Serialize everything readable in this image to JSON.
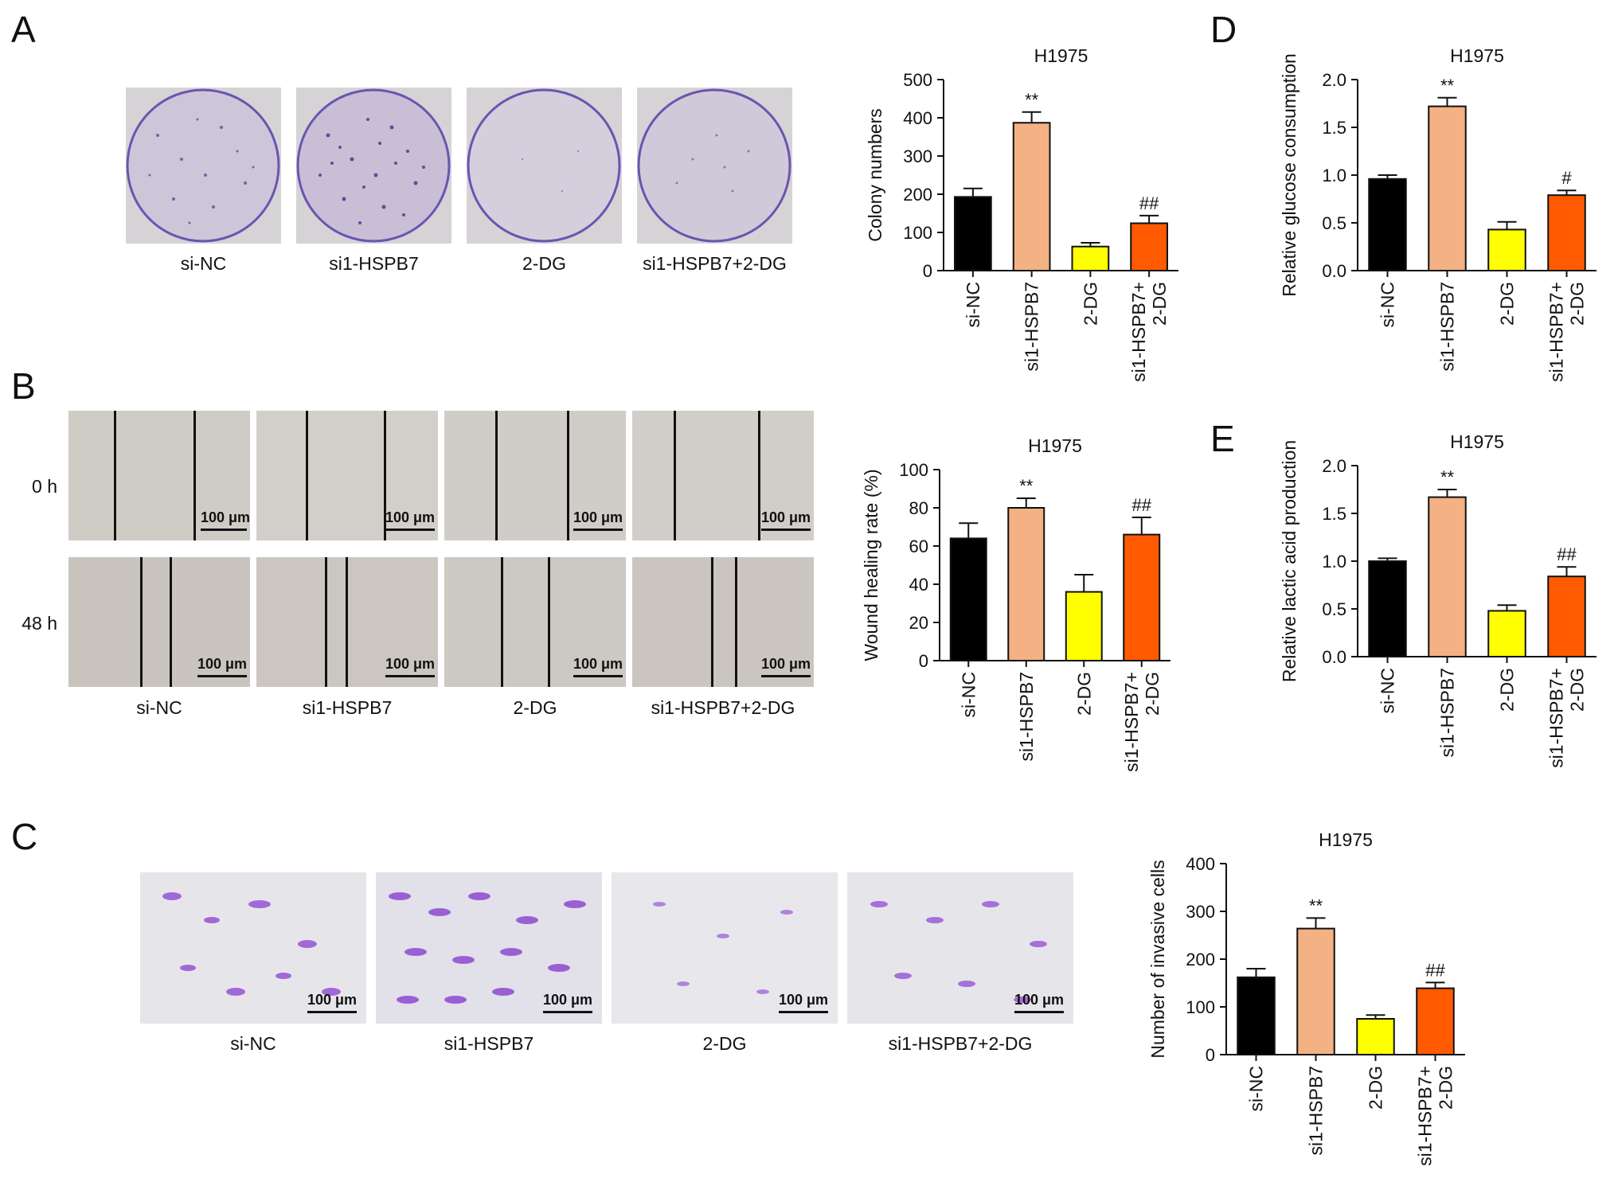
{
  "panels": {
    "A": {
      "letter": "A",
      "captions": [
        "si-NC",
        "si1-HSPB7",
        "2-DG",
        "si1-HSPB7+2-DG"
      ]
    },
    "B": {
      "letter": "B",
      "row_labels": [
        "0 h",
        "48 h"
      ],
      "scale_label": "100 μm",
      "captions": [
        "si-NC",
        "si1-HSPB7",
        "2-DG",
        "si1-HSPB7+2-DG"
      ]
    },
    "C": {
      "letter": "C",
      "scale_label": "100 μm",
      "captions": [
        "si-NC",
        "si1-HSPB7",
        "2-DG",
        "si1-HSPB7+2-DG"
      ]
    },
    "D": {
      "letter": "D"
    },
    "E": {
      "letter": "E"
    }
  },
  "colors": {
    "si-NC": "#000000",
    "si1-HSPB7": "#f4b183",
    "2-DG": "#ffff00",
    "si1-HSPB7+2-DG": "#ff5a00"
  },
  "chart_data": [
    {
      "id": "A",
      "type": "bar",
      "title": "H1975",
      "ylabel": "Colony numbers",
      "xlabel": "",
      "categories": [
        "si-NC",
        "si1-HSPB7",
        "2-DG",
        "si1-HSPB7+\n2-DG"
      ],
      "values": [
        193,
        387,
        63,
        124
      ],
      "errors": [
        22,
        28,
        10,
        20
      ],
      "annotations": [
        "",
        "**",
        "",
        "##"
      ],
      "ylim": [
        0,
        500
      ],
      "yticks": [
        0,
        100,
        200,
        300,
        400,
        500
      ],
      "ytick_labels": [
        "0",
        "100",
        "200",
        "300",
        "400",
        "500"
      ]
    },
    {
      "id": "D",
      "type": "bar",
      "title": "H1975",
      "ylabel": "Relative glucose consumption",
      "xlabel": "",
      "categories": [
        "si-NC",
        "si1-HSPB7",
        "2-DG",
        "si1-HSPB7+\n2-DG"
      ],
      "values": [
        0.96,
        1.72,
        0.43,
        0.79
      ],
      "errors": [
        0.04,
        0.09,
        0.08,
        0.05
      ],
      "annotations": [
        "",
        "**",
        "",
        "#"
      ],
      "ylim": [
        0,
        2.0
      ],
      "yticks": [
        0,
        0.5,
        1.0,
        1.5,
        2.0
      ],
      "ytick_labels": [
        "0.0",
        "0.5",
        "1.0",
        "1.5",
        "2.0"
      ]
    },
    {
      "id": "B",
      "type": "bar",
      "title": "H1975",
      "ylabel": "Wound healing rate (%)",
      "xlabel": "",
      "categories": [
        "si-NC",
        "si1-HSPB7",
        "2-DG",
        "si1-HSPB7+\n2-DG"
      ],
      "values": [
        64,
        80,
        36,
        66
      ],
      "errors": [
        8,
        5,
        9,
        9
      ],
      "annotations": [
        "",
        "**",
        "",
        "##"
      ],
      "ylim": [
        0,
        100
      ],
      "yticks": [
        0,
        20,
        40,
        60,
        80,
        100
      ],
      "ytick_labels": [
        "0",
        "20",
        "40",
        "60",
        "80",
        "100"
      ]
    },
    {
      "id": "E",
      "type": "bar",
      "title": "H1975",
      "ylabel": "Relative lactic acid production",
      "xlabel": "",
      "categories": [
        "si-NC",
        "si1-HSPB7",
        "2-DG",
        "si1-HSPB7+\n2-DG"
      ],
      "values": [
        1.0,
        1.67,
        0.48,
        0.84
      ],
      "errors": [
        0.03,
        0.08,
        0.06,
        0.1
      ],
      "annotations": [
        "",
        "**",
        "",
        "##"
      ],
      "ylim": [
        0,
        2.0
      ],
      "yticks": [
        0,
        0.5,
        1.0,
        1.5,
        2.0
      ],
      "ytick_labels": [
        "0.0",
        "0.5",
        "1.0",
        "1.5",
        "2.0"
      ]
    },
    {
      "id": "C",
      "type": "bar",
      "title": "H1975",
      "ylabel": "Number of invasive cells",
      "xlabel": "",
      "categories": [
        "si-NC",
        "si1-HSPB7",
        "2-DG",
        "si1-HSPB7+\n2-DG"
      ],
      "values": [
        162,
        264,
        75,
        139
      ],
      "errors": [
        18,
        22,
        8,
        12
      ],
      "annotations": [
        "",
        "**",
        "",
        "##"
      ],
      "ylim": [
        0,
        400
      ],
      "yticks": [
        0,
        100,
        200,
        300,
        400
      ],
      "ytick_labels": [
        "0",
        "100",
        "200",
        "300",
        "400"
      ]
    }
  ]
}
